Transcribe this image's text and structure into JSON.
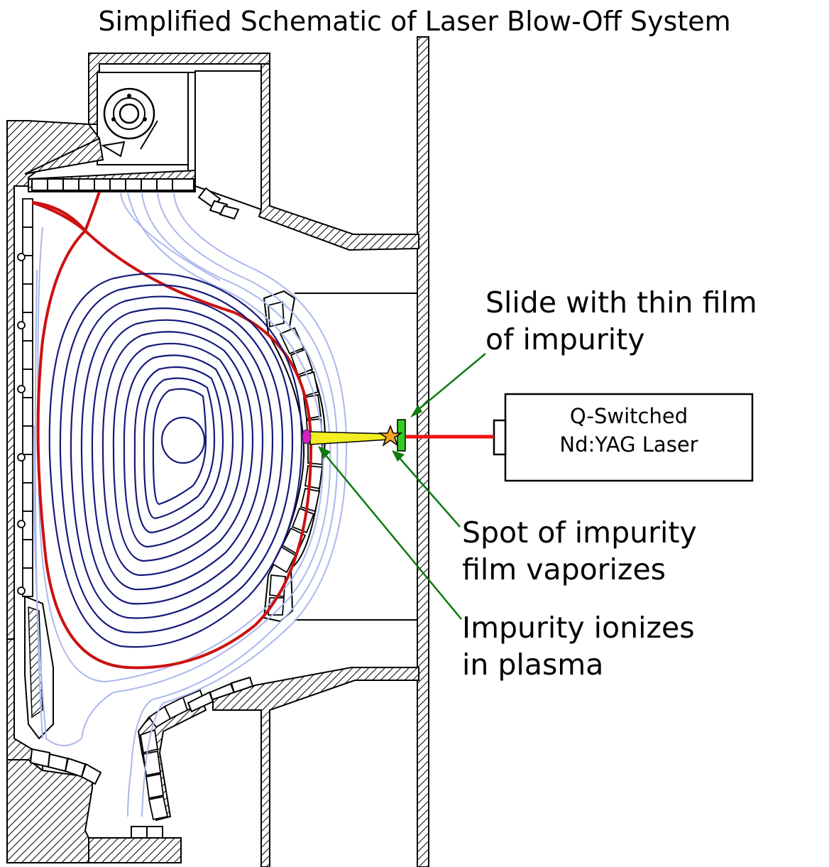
{
  "title": "Simplified Schematic of Laser Blow-Off System",
  "labels": {
    "slide": [
      "Slide with thin film",
      "of impurity"
    ],
    "spot": [
      "Spot of impurity",
      "film vaporizes"
    ],
    "ionize": [
      "Impurity ionizes",
      "in plasma"
    ],
    "laser": [
      "Q-Switched",
      "Nd:YAG Laser"
    ]
  },
  "colors": {
    "flux_core": "#141a7a",
    "flux_outer": "#aab8ee",
    "separatrix": "#cc1111",
    "laser_beam": "#ee1111",
    "slide": "#33cc22",
    "plume": "#f2ee22",
    "plasma_spot": "#d81cc8",
    "vapor_star": "#f5a623",
    "arrows": "#0f7a0f",
    "structure": "#000000"
  },
  "icons": {
    "vapor": "star-icon",
    "port": "circle-port-icon"
  }
}
